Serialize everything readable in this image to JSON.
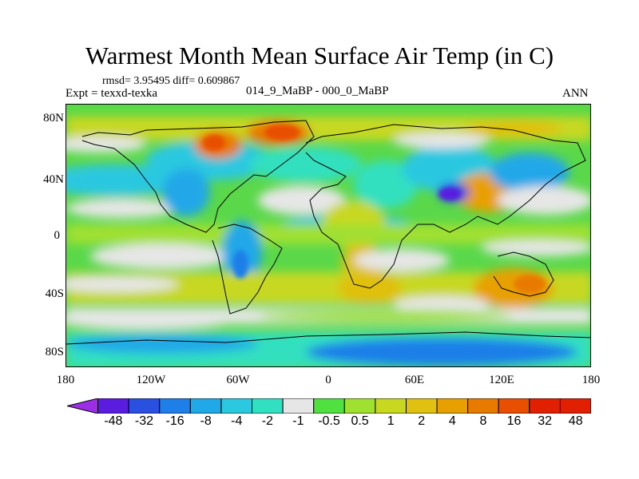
{
  "title": "Warmest Month Mean Surface Air Temp (in C)",
  "stats": "rmsd= 3.95495 diff= 0.609867",
  "expt_label": "Expt = texxd-texka",
  "center_label": "014_9_MaBP - 000_0_MaBP",
  "right_label": "ANN",
  "lat_labels": [
    "80N",
    "40N",
    "0",
    "40S",
    "80S"
  ],
  "lon_labels": [
    "180",
    "120W",
    "60W",
    "0",
    "60E",
    "120E",
    "180"
  ],
  "colorbar": {
    "labels": [
      "-48",
      "-32",
      "-16",
      "-8",
      "-4",
      "-2",
      "-1",
      "-0.5",
      "0.5",
      "1",
      "2",
      "4",
      "8",
      "16",
      "32",
      "48"
    ],
    "colors": [
      "#9b2ee6",
      "#5a1de0",
      "#2a50e0",
      "#1e7fe8",
      "#20a8e8",
      "#2cc8e0",
      "#30e0c0",
      "#e6e6e6",
      "#50e040",
      "#a0e030",
      "#c8d820",
      "#e0c010",
      "#e8a000",
      "#e87a00",
      "#e85000",
      "#e02000"
    ]
  }
}
